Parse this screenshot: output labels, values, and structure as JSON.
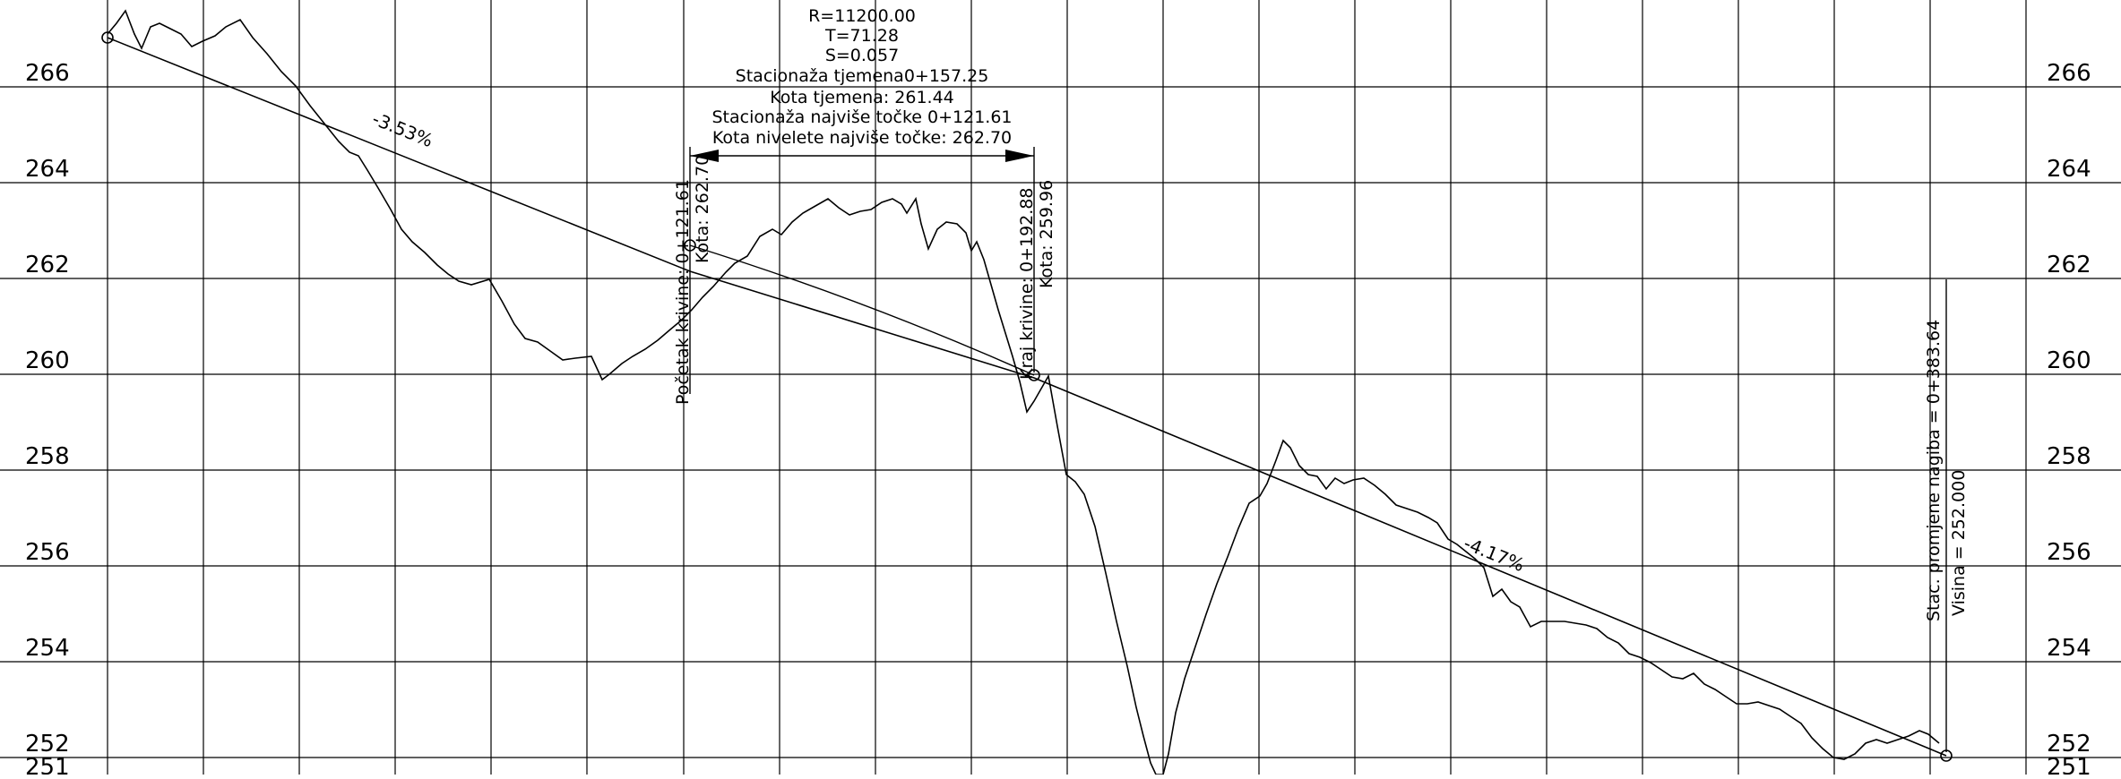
{
  "drawing": {
    "type": "longitudinal-profile",
    "elevation_ticks": [
      "266",
      "264",
      "262",
      "260",
      "258",
      "256",
      "254",
      "252",
      "251"
    ],
    "elevation_values": [
      266,
      264,
      262,
      260,
      258,
      256,
      254,
      252,
      251
    ],
    "grades": {
      "first": "-3.53%",
      "second": "-4.17%"
    },
    "vertical_curve": {
      "lines": [
        "R=11200.00",
        "T=71.28",
        "S=0.057",
        "Stacionaža tjemena0+157.25",
        "Kota tjemena: 261.44",
        "Stacionaža najviše točke 0+121.61",
        "Kota nivelete najviše točke:  262.70"
      ],
      "begin": {
        "line1": "Početak krivine:  0+121.61",
        "line2": "Kota: 262.70"
      },
      "end": {
        "line1": "Kraj krivine:  0+192.88",
        "line2": "Kota:  259.96"
      }
    },
    "grade_change": {
      "line1": "Stac. promjene nagiba  =  0+383.64",
      "line2": "Visina =  252.000"
    },
    "colors": {
      "background": "#ffffff",
      "lines": "#000000"
    }
  }
}
